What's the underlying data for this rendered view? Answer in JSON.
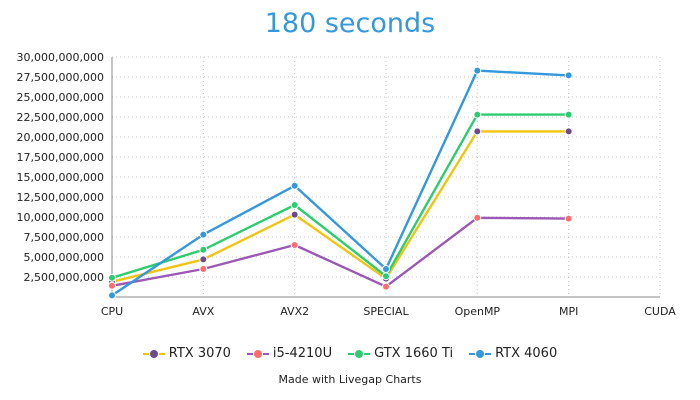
{
  "chart_data": {
    "type": "line",
    "title": "180 seconds",
    "xlabel": "",
    "ylabel": "",
    "categories": [
      "CPU",
      "AVX",
      "AVX2",
      "SPECIAL",
      "OpenMP",
      "MPI",
      "CUDA"
    ],
    "ylim": [
      0,
      30000000
    ],
    "yticks": [
      2500000,
      5000000,
      7500000,
      10000000,
      12500000,
      15000000,
      17500000,
      20000000,
      22500000,
      25000000,
      27500000,
      30000000
    ],
    "ytick_labels": [
      "2,500,000,000",
      "5,000,000,000",
      "7,500,000,000",
      "10,000,000,000",
      "12,500,000,000",
      "15,000,000,000",
      "17,500,000,000",
      "20,000,000,000",
      "22,500,000,000",
      "25,000,000,000",
      "27,500,000,000",
      "30,000,000,000"
    ],
    "grid": true,
    "legend_position": "bottom",
    "series": [
      {
        "name": "RTX 3070",
        "line_color": "#f1c40f",
        "marker_color": "#6c4a8c",
        "values": [
          1900000,
          4700000,
          10300000,
          2300000,
          20700000,
          20700000,
          null
        ]
      },
      {
        "name": "i5-4210U",
        "line_color": "#9b59b6",
        "marker_color": "#ff6b6b",
        "values": [
          1400000,
          3500000,
          6500000,
          1300000,
          9900000,
          9800000,
          null
        ]
      },
      {
        "name": "GTX 1660 Ti",
        "line_color": "#2ecc71",
        "marker_color": "#2ecc71",
        "values": [
          2400000,
          5900000,
          11500000,
          2600000,
          22800000,
          22800000,
          null
        ]
      },
      {
        "name": "RTX 4060",
        "line_color": "#3498db",
        "marker_color": "#3498db",
        "values": [
          200000,
          7800000,
          13900000,
          3500000,
          28300000,
          27700000,
          null
        ]
      }
    ]
  },
  "credit": "Made with Livegap Charts"
}
